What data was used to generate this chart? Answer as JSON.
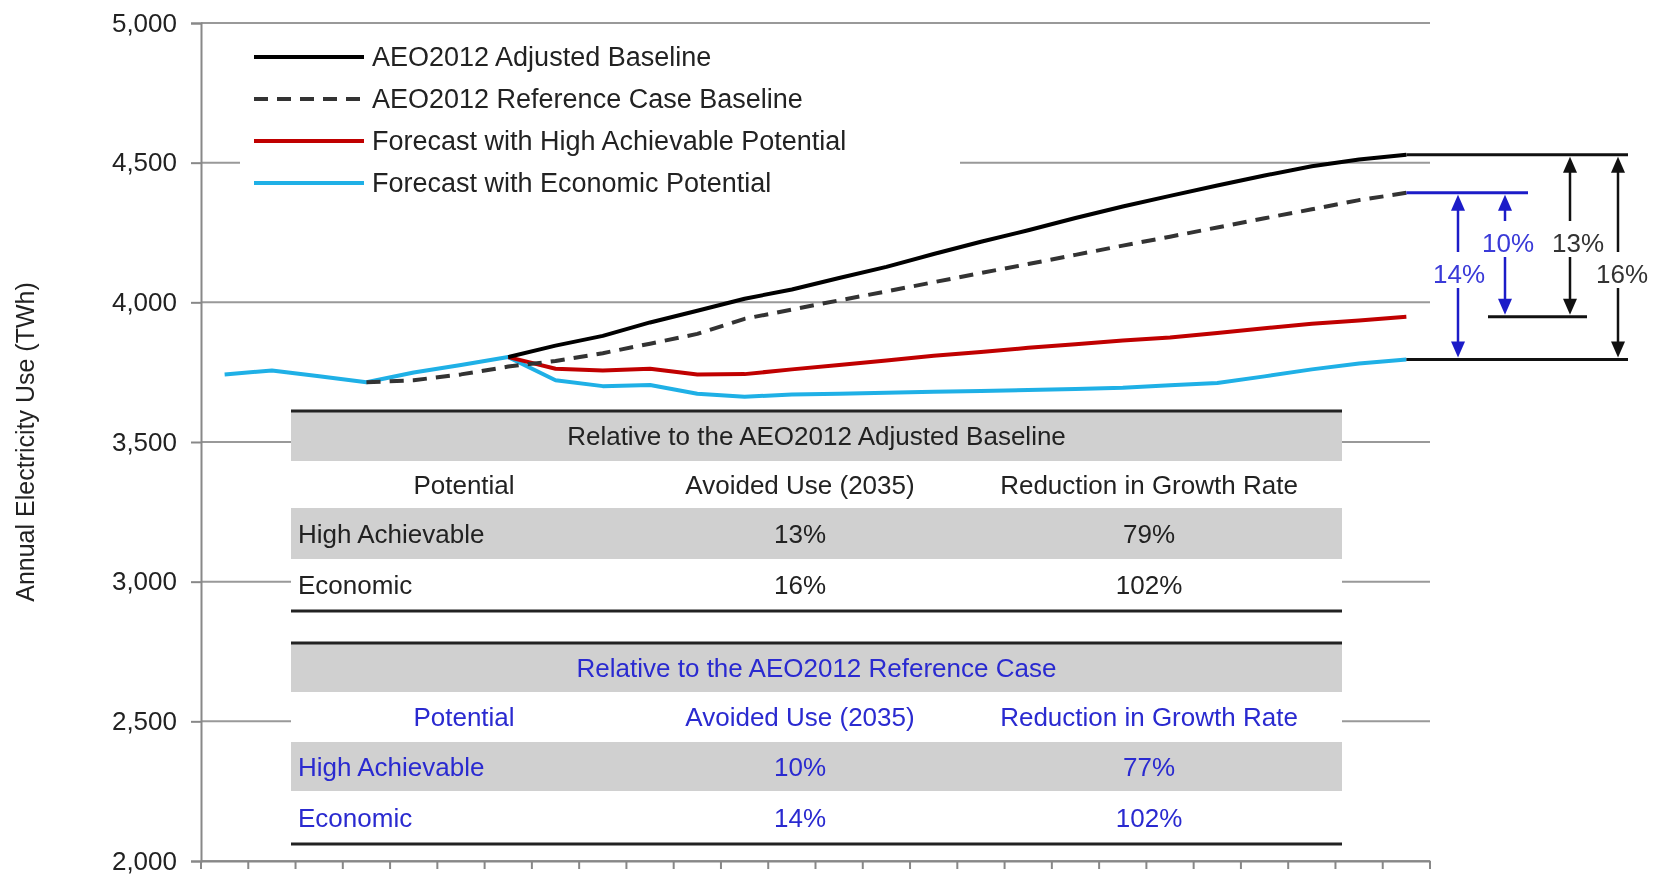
{
  "chart_data": {
    "type": "line",
    "ylabel": "Annual Electricity Use (TWh)",
    "categories": [
      null,
      null,
      null,
      null,
      null,
      null,
      null,
      null,
      null,
      null,
      null,
      null,
      null,
      null,
      null,
      null,
      null,
      null,
      null,
      null,
      null,
      null,
      null,
      null,
      null,
      null
    ],
    "ylim": [
      2000,
      5000
    ],
    "yticks": [
      {
        "value": 2000,
        "label": "2,000"
      },
      {
        "value": 2500,
        "label": "2,500"
      },
      {
        "value": 3000,
        "label": "3,000"
      },
      {
        "value": 3500,
        "label": "3,500"
      },
      {
        "value": 4000,
        "label": "4,000"
      },
      {
        "value": 4500,
        "label": "4,500"
      },
      {
        "value": 5000,
        "label": "5,000"
      }
    ],
    "grid": "y",
    "legend": "top left",
    "marker": "none",
    "series": [
      {
        "name": "AEO2012 Adjusted Baseline",
        "color": "#000000",
        "line_style": "solid",
        "values": [
          null,
          null,
          null,
          null,
          null,
          null,
          3804,
          3845,
          3880,
          3928,
          3970,
          4013,
          4046,
          4087,
          4127,
          4173,
          4217,
          4258,
          4302,
          4343,
          4381,
          4418,
          4454,
          4487,
          4511,
          4528
        ]
      },
      {
        "name": "AEO2012 Reference Case Baseline",
        "color": "#333333",
        "line_style": "dashed",
        "values": [
          null,
          null,
          null,
          3714,
          3721,
          3742,
          3770,
          3790,
          3818,
          3852,
          3887,
          3941,
          3974,
          4007,
          4039,
          4072,
          4105,
          4137,
          4170,
          4203,
          4235,
          4268,
          4301,
          4333,
          4366,
          4392
        ]
      },
      {
        "name": "Forecast with High Achievable Potential",
        "color": "#c00000",
        "line_style": "solid",
        "values": [
          null,
          null,
          null,
          null,
          null,
          null,
          3804,
          3762,
          3756,
          3762,
          3742,
          3743,
          3760,
          3776,
          3792,
          3809,
          3822,
          3837,
          3850,
          3863,
          3874,
          3890,
          3907,
          3923,
          3935,
          3948
        ]
      },
      {
        "name": "Forecast with Economic Potential",
        "color": "#1fb0e6",
        "line_style": "solid",
        "values": [
          3742,
          3756,
          3735,
          3714,
          3749,
          3776,
          3804,
          3721,
          3700,
          3704,
          3673,
          3662,
          3670,
          3673,
          3676,
          3680,
          3683,
          3686,
          3690,
          3694,
          3703,
          3711,
          3735,
          3760,
          3781,
          3795
        ]
      }
    ],
    "annotations": [
      "10%",
      "13%",
      "14%",
      "16%",
      "Relative to the AEO2012 Adjusted Baseline",
      "Potential",
      "Avoided Use (2035)",
      "Reduction in Growth Rate",
      "High Achievable",
      "13%",
      "79%",
      "Economic",
      "16%",
      "102%",
      "Relative to the AEO2012 Reference Case",
      "Potential",
      "Avoided Use (2035)",
      "Reduction in Growth Rate",
      "High Achievable",
      "10%",
      "77%",
      "Economic",
      "14%",
      "102%"
    ]
  }
}
